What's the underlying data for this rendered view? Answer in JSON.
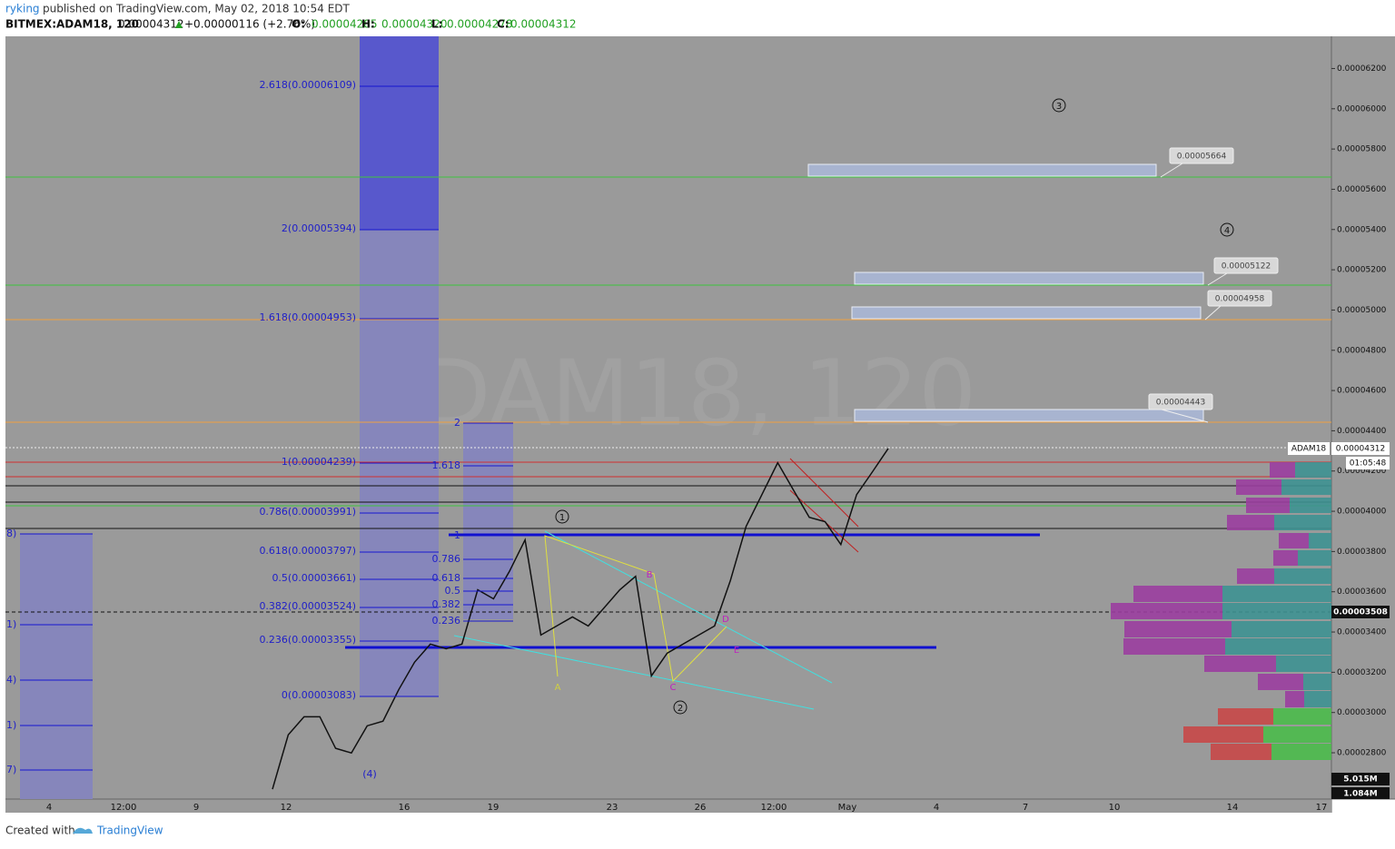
{
  "header": {
    "author": "ryking",
    "published": "published on TradingView.com, May 02, 2018 10:54 EDT",
    "symbol": "BITMEX:ADAM18, 120",
    "last": "0.00004312",
    "change": "+0.00000116 (+2.76%)",
    "ohlc": [
      {
        "label": "O:",
        "value": "0.00004285"
      },
      {
        "label": "H:",
        "value": "0.00004320"
      },
      {
        "label": "L:",
        "value": "0.00004278"
      },
      {
        "label": "C:",
        "value": "0.00004312"
      }
    ]
  },
  "watermark": "ADAM18, 120",
  "chart_data": {
    "type": "line",
    "color": "#111111",
    "values": [
      2.619e-05,
      2.889e-05,
      2.979e-05,
      2.979e-05,
      2.822e-05,
      2.799e-05,
      2.934e-05,
      2.957e-05,
      3.114e-05,
      3.25e-05,
      3.34e-05,
      3.317e-05,
      3.34e-05,
      3.61e-05,
      3.565e-05,
      3.7e-05,
      3.858e-05,
      3.385e-05,
      3.43e-05,
      3.475e-05,
      3.43e-05,
      3.52e-05,
      3.61e-05,
      3.677e-05,
      3.182e-05,
      3.295e-05,
      3.34e-05,
      3.385e-05,
      3.43e-05,
      3.655e-05,
      3.925e-05,
      4.083e-05,
      4.241e-05,
      4.105e-05,
      3.97e-05,
      3.948e-05,
      3.835e-05,
      4.083e-05,
      4.196e-05,
      4.312e-05
    ],
    "ylim": [
      2.57e-05,
      6.36e-05
    ],
    "yticks": [
      {
        "value": 6.2e-05,
        "label": "0.00006200"
      },
      {
        "value": 6e-05,
        "label": "0.00006000"
      },
      {
        "value": 5.8e-05,
        "label": "0.00005800"
      },
      {
        "value": 5.6e-05,
        "label": "0.00005600"
      },
      {
        "value": 5.4e-05,
        "label": "0.00005400"
      },
      {
        "value": 5.2e-05,
        "label": "0.00005200"
      },
      {
        "value": 5e-05,
        "label": "0.00005000"
      },
      {
        "value": 4.8e-05,
        "label": "0.00004800"
      },
      {
        "value": 4.6e-05,
        "label": "0.00004600"
      },
      {
        "value": 4.4e-05,
        "label": "0.00004400"
      },
      {
        "value": 4.2e-05,
        "label": "0.00004200"
      },
      {
        "value": 4e-05,
        "label": "0.00004000"
      },
      {
        "value": 3.8e-05,
        "label": "0.00003800"
      },
      {
        "value": 3.6e-05,
        "label": "0.00003600"
      },
      {
        "value": 3.4e-05,
        "label": "0.00003400"
      },
      {
        "value": 3.2e-05,
        "label": "0.00003200"
      },
      {
        "value": 3e-05,
        "label": "0.00003000"
      },
      {
        "value": 2.8e-05,
        "label": "0.00002800"
      }
    ]
  },
  "time_axis": [
    "4",
    "12:00",
    "9",
    "12",
    "16",
    "19",
    "23",
    "26",
    "12:00",
    "May",
    "4",
    "7",
    "10",
    "14",
    "17"
  ],
  "fib_main": [
    "2.618(0.00006109)",
    "2(0.00005394)",
    "1.618(0.00004953)",
    "1(0.00004239)",
    "0.786(0.00003991)",
    "0.618(0.00003797)",
    "0.5(0.00003661)",
    "0.382(0.00003524)",
    "0.236(0.00003355)",
    "0(0.00003083)"
  ],
  "fib_second": [
    "2",
    "1.618",
    "1",
    "0.786",
    "0.618",
    "0.5",
    "0.382",
    "0.236"
  ],
  "fib_left": [
    "8)",
    "1)",
    "4)",
    "1)",
    "7)"
  ],
  "targets": [
    "0.00005664",
    "0.00005122",
    "0.00004958",
    "0.00004443"
  ],
  "waves": [
    "1",
    "2",
    "3",
    "4"
  ],
  "wave_note": "(4)",
  "letters": [
    "A",
    "B",
    "C",
    "D",
    "E"
  ],
  "price_tags": {
    "symbol": "ADAM18",
    "last": "0.00004312",
    "countdown": "01:05:48",
    "marker": "0.00003508",
    "vol1": "5.015M",
    "vol2": "1.084M"
  },
  "footer": {
    "created": "Created with",
    "brand": "TradingView"
  }
}
